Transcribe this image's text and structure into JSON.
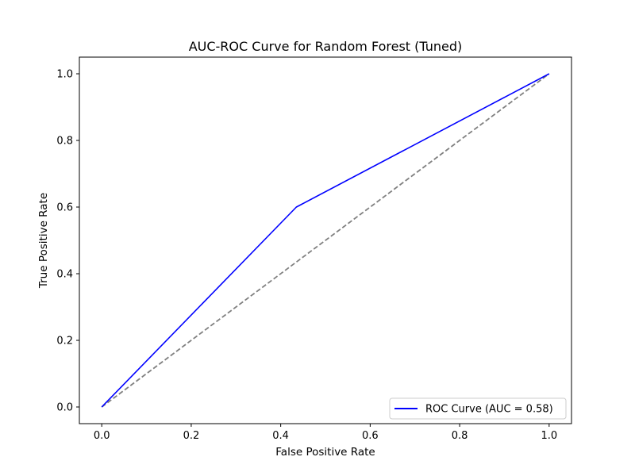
{
  "chart_data": {
    "type": "line",
    "title": "AUC-ROC Curve for Random Forest (Tuned)",
    "xlabel": "False Positive Rate",
    "ylabel": "True Positive Rate",
    "xlim": [
      -0.05,
      1.05
    ],
    "ylim": [
      -0.05,
      1.05
    ],
    "x_ticks": [
      0.0,
      0.2,
      0.4,
      0.6,
      0.8,
      1.0
    ],
    "y_ticks": [
      0.0,
      0.2,
      0.4,
      0.6,
      0.8,
      1.0
    ],
    "x_tick_labels": [
      "0.0",
      "0.2",
      "0.4",
      "0.6",
      "0.8",
      "1.0"
    ],
    "y_tick_labels": [
      "0.0",
      "0.2",
      "0.4",
      "0.6",
      "0.8",
      "1.0"
    ],
    "grid": false,
    "legend_position": "lower right",
    "series": [
      {
        "name": "ROC Curve (AUC = 0.58)",
        "color": "#0000ff",
        "line_style": "solid",
        "x": [
          0.0,
          0.435,
          1.0
        ],
        "y": [
          0.0,
          0.6,
          1.0
        ],
        "show_in_legend": true
      },
      {
        "name": "",
        "color": "#808080",
        "line_style": "dashed",
        "x": [
          0.0,
          1.0
        ],
        "y": [
          0.0,
          1.0
        ],
        "show_in_legend": false
      }
    ]
  }
}
